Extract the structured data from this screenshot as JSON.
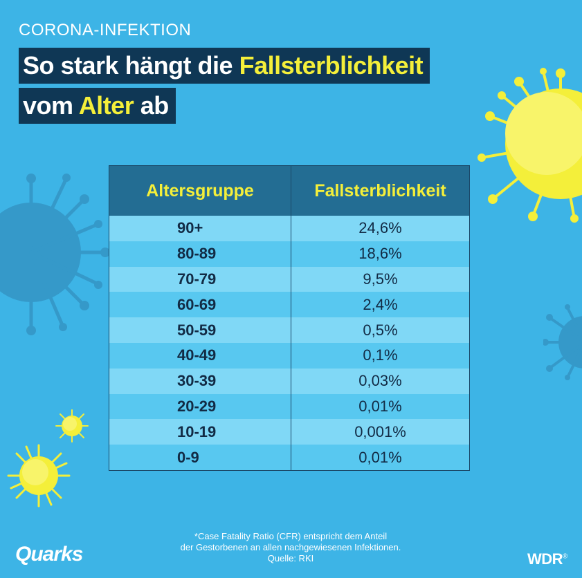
{
  "header": {
    "kicker": "CORONA-INFEKTION",
    "line1_pre": "So stark hängt die ",
    "line1_hl": "Fallsterblichkeit",
    "line2_pre": "vom ",
    "line2_hl": "Alter",
    "line2_post": " ab"
  },
  "table": {
    "columns": [
      "Altersgruppe",
      "Fallsterblichkeit"
    ],
    "rows": [
      {
        "age": "90+",
        "cfr": "24,6%"
      },
      {
        "age": "80-89",
        "cfr": "18,6%"
      },
      {
        "age": "70-79",
        "cfr": "9,5%"
      },
      {
        "age": "60-69",
        "cfr": "2,4%"
      },
      {
        "age": "50-59",
        "cfr": "0,5%"
      },
      {
        "age": "40-49",
        "cfr": "0,1%"
      },
      {
        "age": "30-39",
        "cfr": "0,03%"
      },
      {
        "age": "20-29",
        "cfr": "0,01%"
      },
      {
        "age": "10-19",
        "cfr": "0,001%"
      },
      {
        "age": "0-9",
        "cfr": "0,01%"
      }
    ]
  },
  "footnote": {
    "line1": "*Case Fatality Ratio (CFR) entspricht dem Anteil",
    "line2": "der Gestorbenen an allen nachgewiesenen Infektionen.",
    "line3": "Quelle: RKI"
  },
  "brand": {
    "left": "Quarks",
    "right": "WDR",
    "right_mark": "®"
  },
  "colors": {
    "background": "#3db4e6",
    "title_bar": "#0f3755",
    "highlight": "#f4ef3a",
    "table_header": "#236d93",
    "row_light": "#80d8f6",
    "row_dark": "#58c8f0"
  },
  "icons": [
    "virus-icon"
  ]
}
